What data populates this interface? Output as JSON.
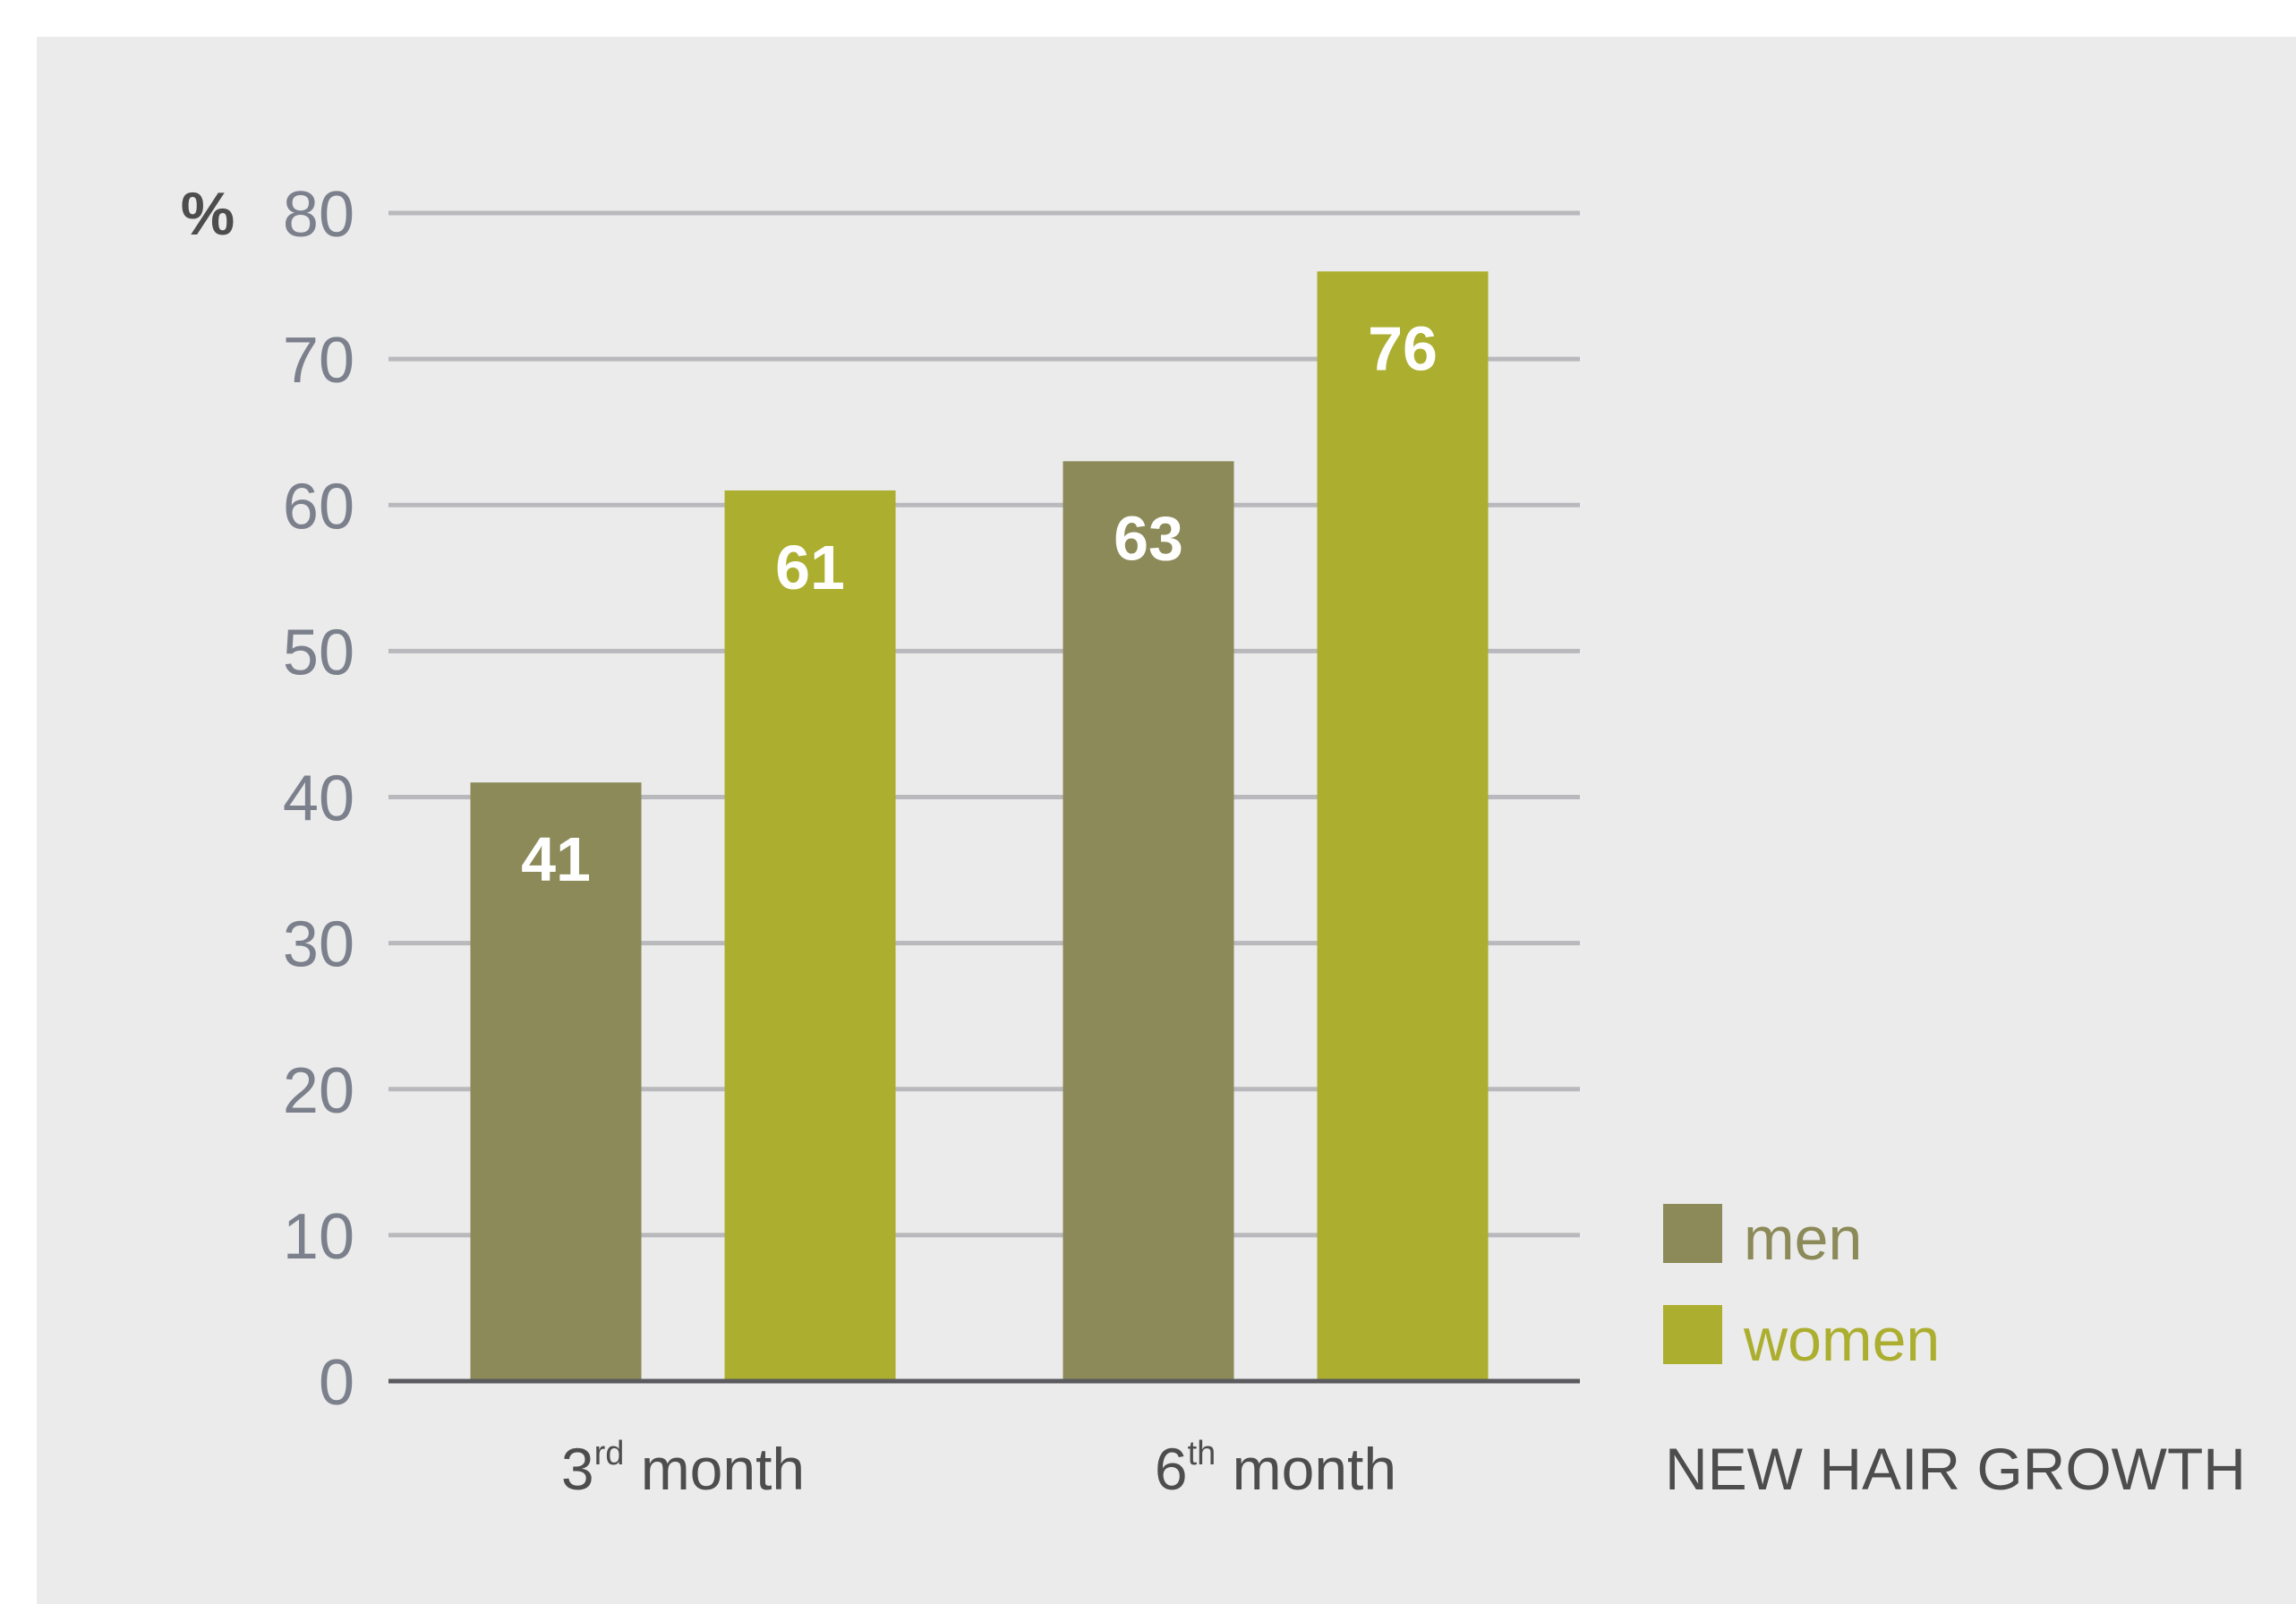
{
  "chart_data": {
    "type": "bar",
    "title": "NEW HAIR GROWTH",
    "ylabel": "%",
    "ylim": [
      0,
      80
    ],
    "yticks": [
      0,
      10,
      20,
      30,
      40,
      50,
      60,
      70,
      80
    ],
    "grid": true,
    "legend_position": "right",
    "categories": [
      {
        "base": "3",
        "sup": "rd",
        "rest": " month"
      },
      {
        "base": "6",
        "sup": "th",
        "rest": " month"
      }
    ],
    "series": [
      {
        "name": "men",
        "color": "#8b8a58",
        "values": [
          41,
          63
        ]
      },
      {
        "name": "women",
        "color": "#acae2f",
        "values": [
          61,
          76
        ]
      }
    ]
  },
  "colors": {
    "background": "#ebebeb",
    "grid": "#b9b9bd",
    "axis": "#5a5a5f",
    "tick_text": "#7b808c",
    "text": "#4d4d4d"
  }
}
